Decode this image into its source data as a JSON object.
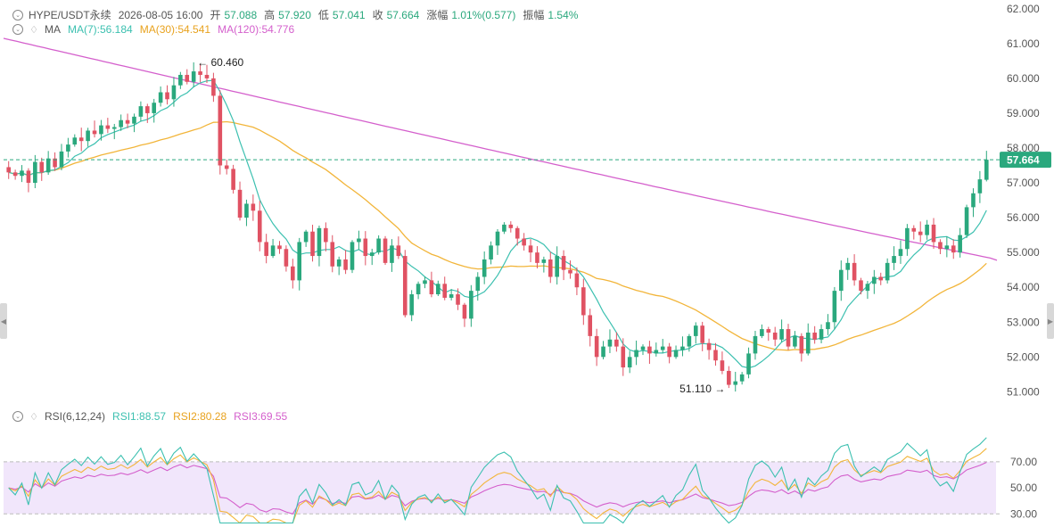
{
  "header": {
    "symbol": "HYPE/USDT永续",
    "datetime": "2026-08-05 16:00",
    "open_label": "开",
    "open": "57.088",
    "high_label": "高",
    "high": "57.920",
    "low_label": "低",
    "low": "57.041",
    "close_label": "收",
    "close": "57.664",
    "change_label": "涨幅",
    "change": "1.01%(0.577)",
    "amplitude_label": "振幅",
    "amplitude": "1.54%"
  },
  "ma_header": {
    "label": "MA",
    "ma7": "MA(7):56.184",
    "ma30": "MA(30):54.541",
    "ma120": "MA(120):54.776"
  },
  "rsi_header": {
    "label": "RSI(6,12,24)",
    "rsi1": "RSI1:88.57",
    "rsi2": "RSI2:80.28",
    "rsi3": "RSI3:69.55"
  },
  "colors": {
    "up": "#2aa87d",
    "down": "#e05263",
    "ma7": "#3cc0b0",
    "ma30": "#f2b53a",
    "ma120": "#d45fcc",
    "rsi1": "#3cc0b0",
    "rsi2": "#f2b53a",
    "rsi3": "#d45fcc",
    "rsi_band": "#f1e6fb",
    "last_price": "#2aa87d"
  },
  "chart_data": [
    {
      "type": "candlestick",
      "ylim": [
        50.6,
        62.25
      ],
      "yticks": [
        "62.000",
        "61.000",
        "60.000",
        "59.000",
        "58.000",
        "57.000",
        "56.000",
        "55.000",
        "54.000",
        "53.000",
        "52.000",
        "51.000"
      ],
      "last_price": "57.664",
      "high_annotation": "60.460",
      "low_annotation": "51.110",
      "closes": [
        57.3,
        57.2,
        57.35,
        57.0,
        57.6,
        57.3,
        57.7,
        57.45,
        57.9,
        58.1,
        58.3,
        58.2,
        58.5,
        58.4,
        58.65,
        58.55,
        58.6,
        58.8,
        58.7,
        58.9,
        59.2,
        59.0,
        59.3,
        59.6,
        59.4,
        59.8,
        60.1,
        59.9,
        60.2,
        60.1,
        60.0,
        59.5,
        57.5,
        57.4,
        56.8,
        56.0,
        56.4,
        56.2,
        55.3,
        54.9,
        55.2,
        55.1,
        54.6,
        54.2,
        55.3,
        55.6,
        54.9,
        55.7,
        55.3,
        54.6,
        54.8,
        54.5,
        55.3,
        55.4,
        54.9,
        55.0,
        55.4,
        54.7,
        55.2,
        54.9,
        53.2,
        53.8,
        54.1,
        54.2,
        53.8,
        54.1,
        53.7,
        53.8,
        53.5,
        53.1,
        53.9,
        54.3,
        54.8,
        55.2,
        55.6,
        55.8,
        55.7,
        55.4,
        55.2,
        55.0,
        54.7,
        54.8,
        54.3,
        54.9,
        54.5,
        54.4,
        54.0,
        53.2,
        52.6,
        52.0,
        52.3,
        52.5,
        52.3,
        51.7,
        52.0,
        52.2,
        52.3,
        52.1,
        52.2,
        52.3,
        52.0,
        52.2,
        52.3,
        52.6,
        52.9,
        52.4,
        52.2,
        51.9,
        51.6,
        51.2,
        51.3,
        51.5,
        52.1,
        52.6,
        52.8,
        52.7,
        52.5,
        52.8,
        52.3,
        52.6,
        52.1,
        52.7,
        52.5,
        52.8,
        53.0,
        53.9,
        54.5,
        54.7,
        54.2,
        53.9,
        54.1,
        54.3,
        54.2,
        54.7,
        54.9,
        55.1,
        55.7,
        55.6,
        55.5,
        55.8,
        55.3,
        55.1,
        55.2,
        55.0,
        55.5,
        56.3,
        56.7,
        57.1,
        57.664
      ]
    },
    {
      "type": "line",
      "ylim": [
        22,
        100
      ],
      "yticks": [
        "70.00",
        "50.00",
        "30.00"
      ],
      "band": [
        30,
        70
      ],
      "series_values": {
        "rsi1_tail": 88.57,
        "rsi2_tail": 80.28,
        "rsi3_tail": 69.55
      }
    }
  ]
}
